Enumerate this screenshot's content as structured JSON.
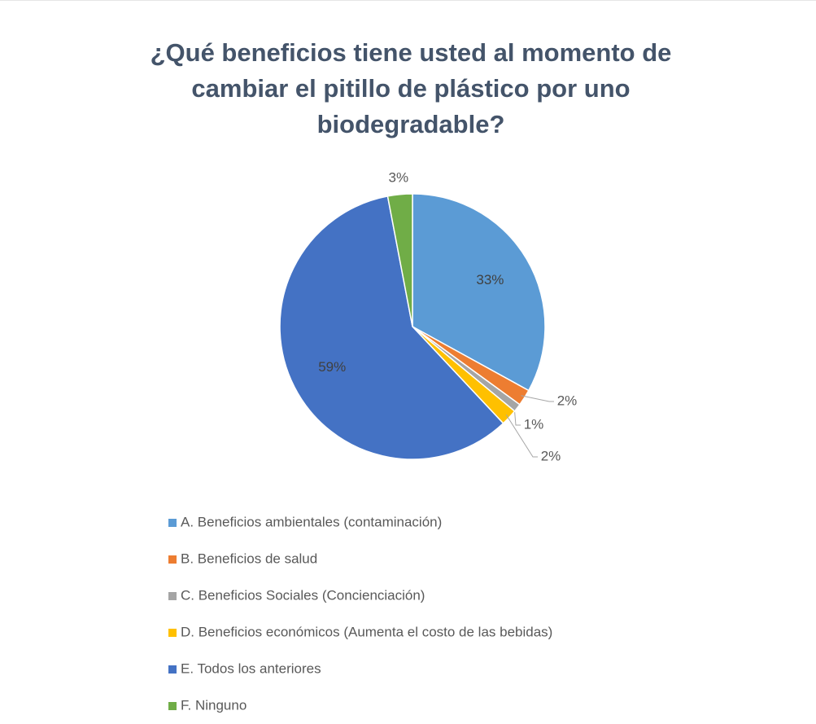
{
  "chart_data": {
    "type": "pie",
    "title": "¿Qué beneficios tiene usted al momento de cambiar el pitillo de plástico por uno biodegradable?",
    "categories": [
      "A. Beneficios ambientales (contaminación)",
      "B. Beneficios de salud",
      "C. Beneficios Sociales (Concienciación)",
      "D. Beneficios económicos (Aumenta el costo de las bebidas)",
      "E. Todos los anteriores",
      "F. Ninguno"
    ],
    "values": [
      33,
      2,
      1,
      2,
      59,
      3
    ],
    "value_labels": [
      "33%",
      "2%",
      "1%",
      "2%",
      "59%",
      "3%"
    ],
    "colors": [
      "#5b9bd5",
      "#ed7d31",
      "#a5a5a5",
      "#ffc000",
      "#4472c4",
      "#70ad47"
    ],
    "legend": "bottom"
  }
}
